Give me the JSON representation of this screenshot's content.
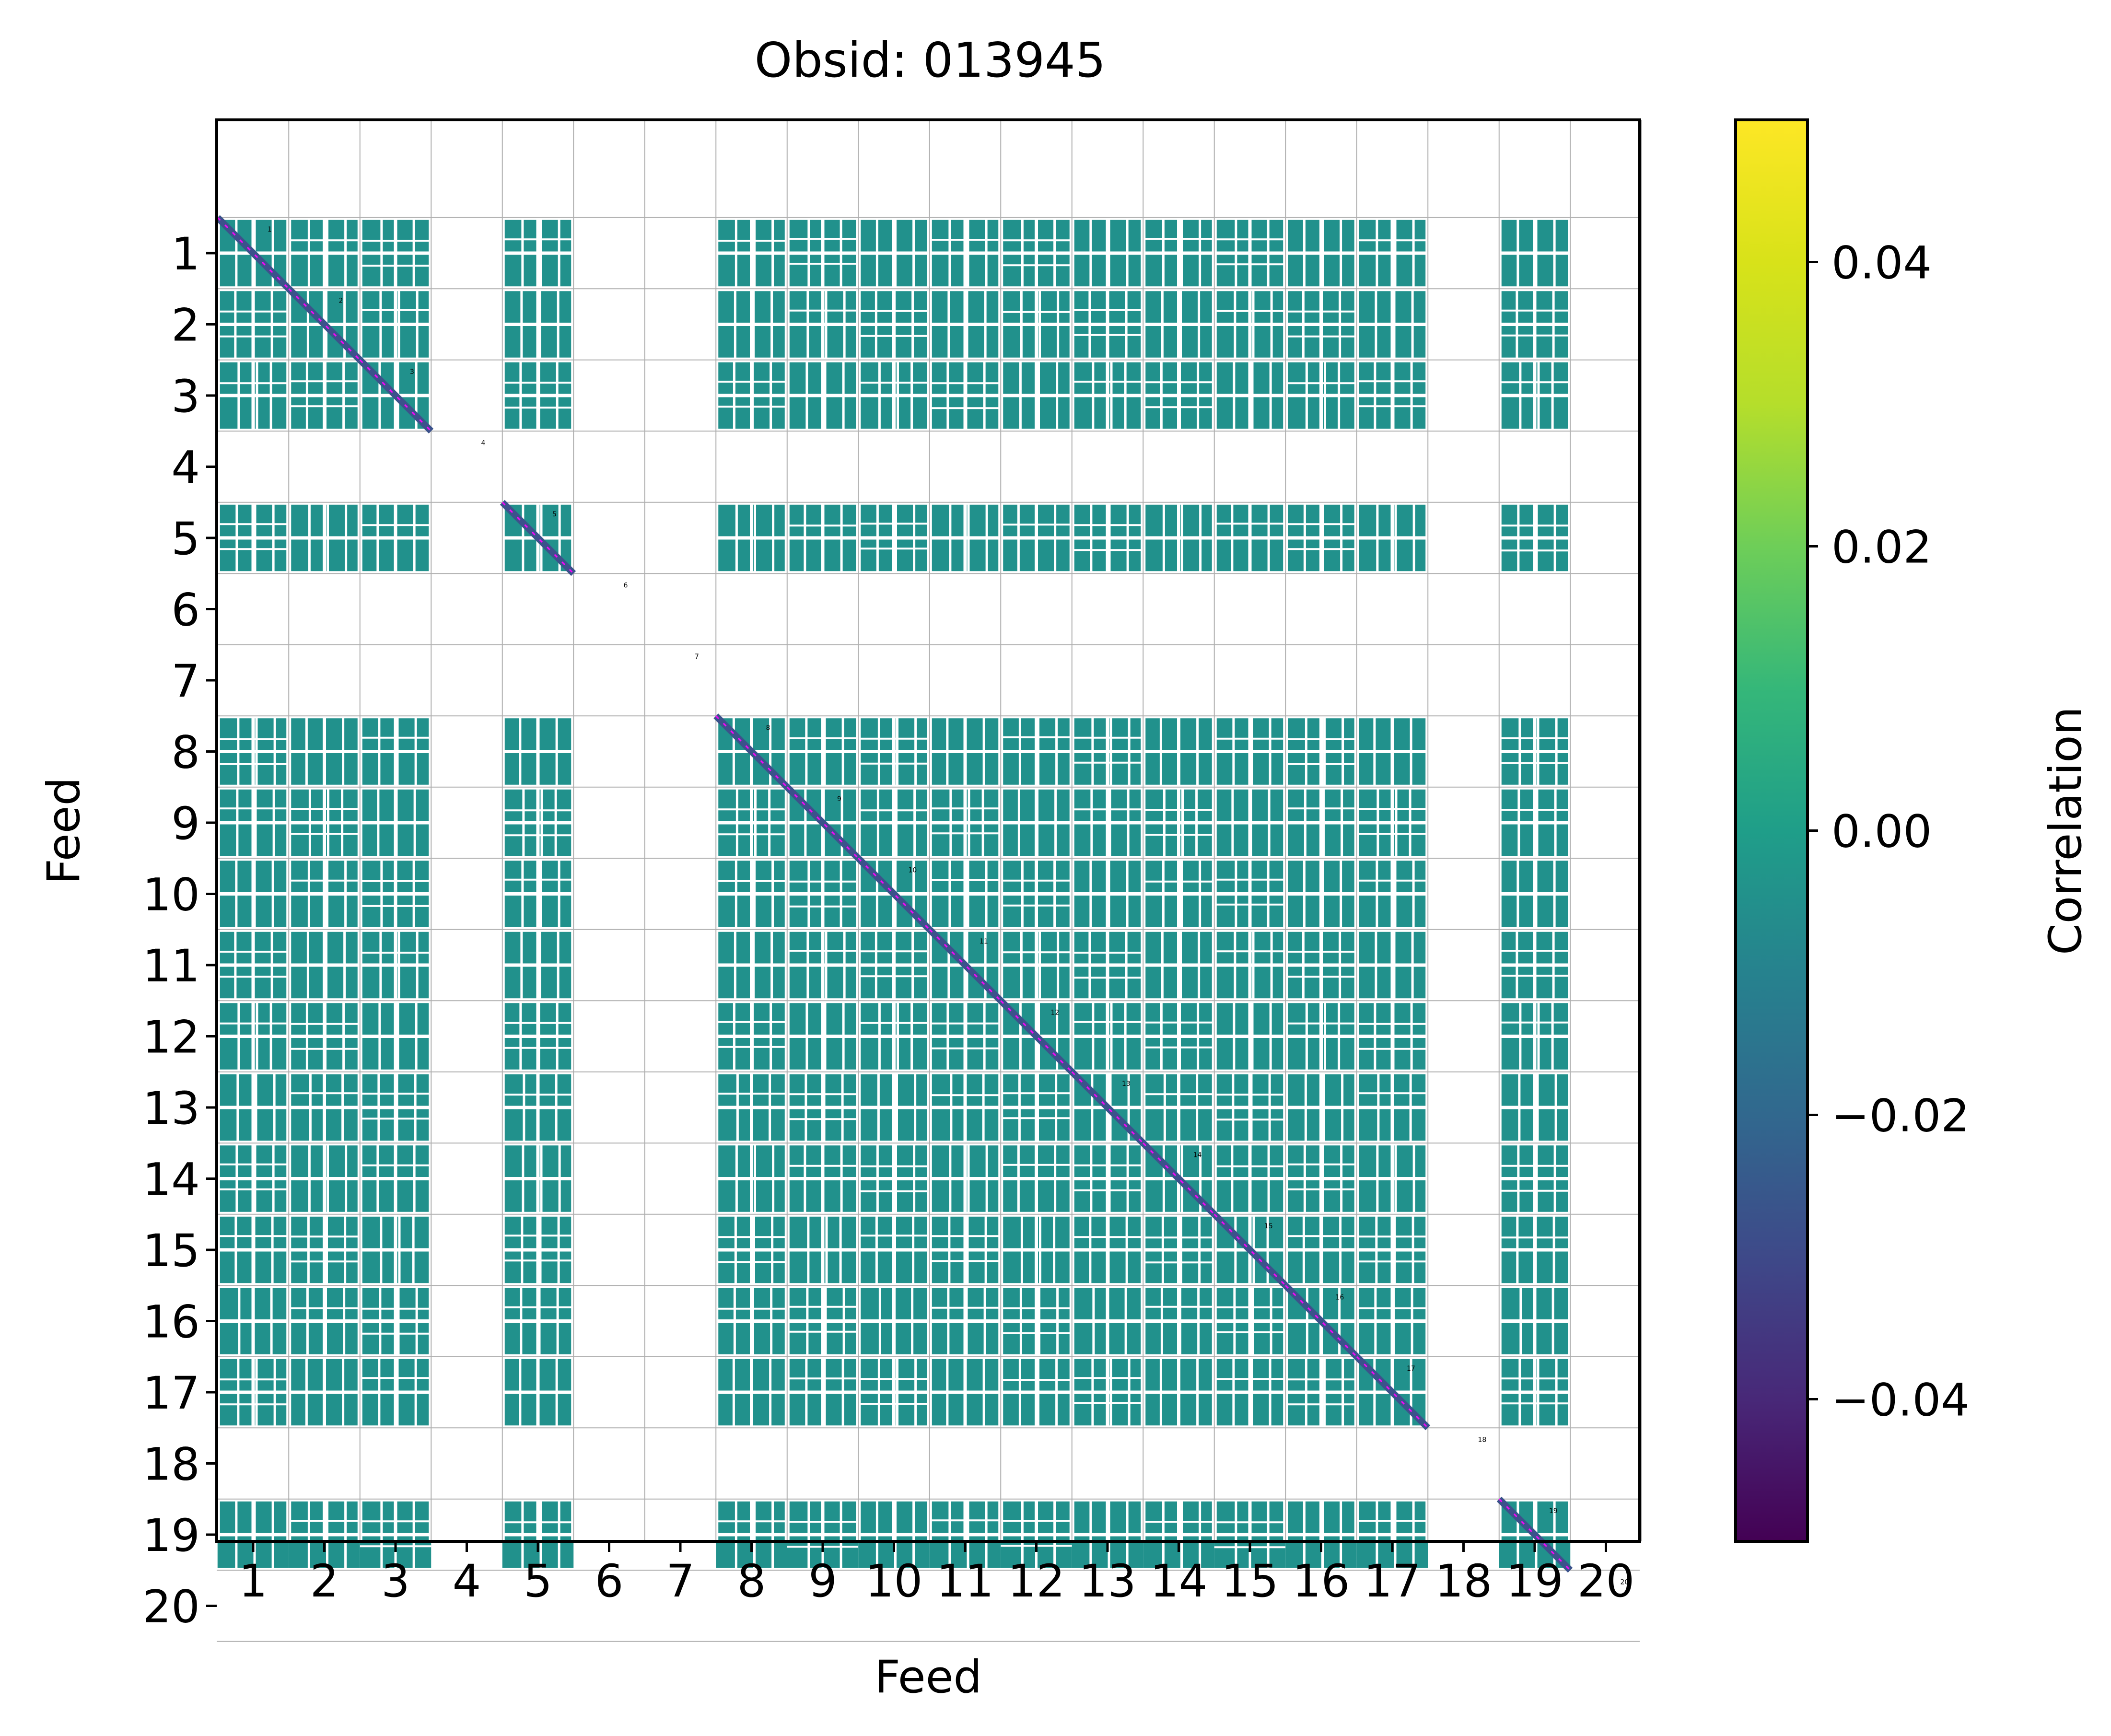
{
  "chart_data": {
    "type": "heatmap",
    "title": "Obsid: 013945",
    "xlabel": "Feed",
    "ylabel": "Feed",
    "feeds": [
      "1",
      "2",
      "3",
      "4",
      "5",
      "6",
      "7",
      "8",
      "9",
      "10",
      "11",
      "12",
      "13",
      "14",
      "15",
      "16",
      "17",
      "18",
      "19",
      "20"
    ],
    "active_feeds": [
      1,
      2,
      3,
      5,
      8,
      9,
      10,
      11,
      12,
      13,
      14,
      15,
      16,
      17,
      19
    ],
    "inactive_feeds": [
      4,
      6,
      7,
      18,
      20
    ],
    "off_diagonal_value": 0.0,
    "colorbar": {
      "label": "Correlation",
      "range": [
        -0.05,
        0.05
      ],
      "ticks": [
        0.04,
        0.02,
        0.0,
        -0.02,
        -0.04
      ],
      "tick_labels": [
        "0.04",
        "0.02",
        "0.00",
        "−0.02",
        "−0.04"
      ],
      "colormap": "viridis"
    },
    "cell_color": "#21918c",
    "diagonal_color": "#3b528b",
    "diagonal_dash_color": "#ff00ff"
  }
}
